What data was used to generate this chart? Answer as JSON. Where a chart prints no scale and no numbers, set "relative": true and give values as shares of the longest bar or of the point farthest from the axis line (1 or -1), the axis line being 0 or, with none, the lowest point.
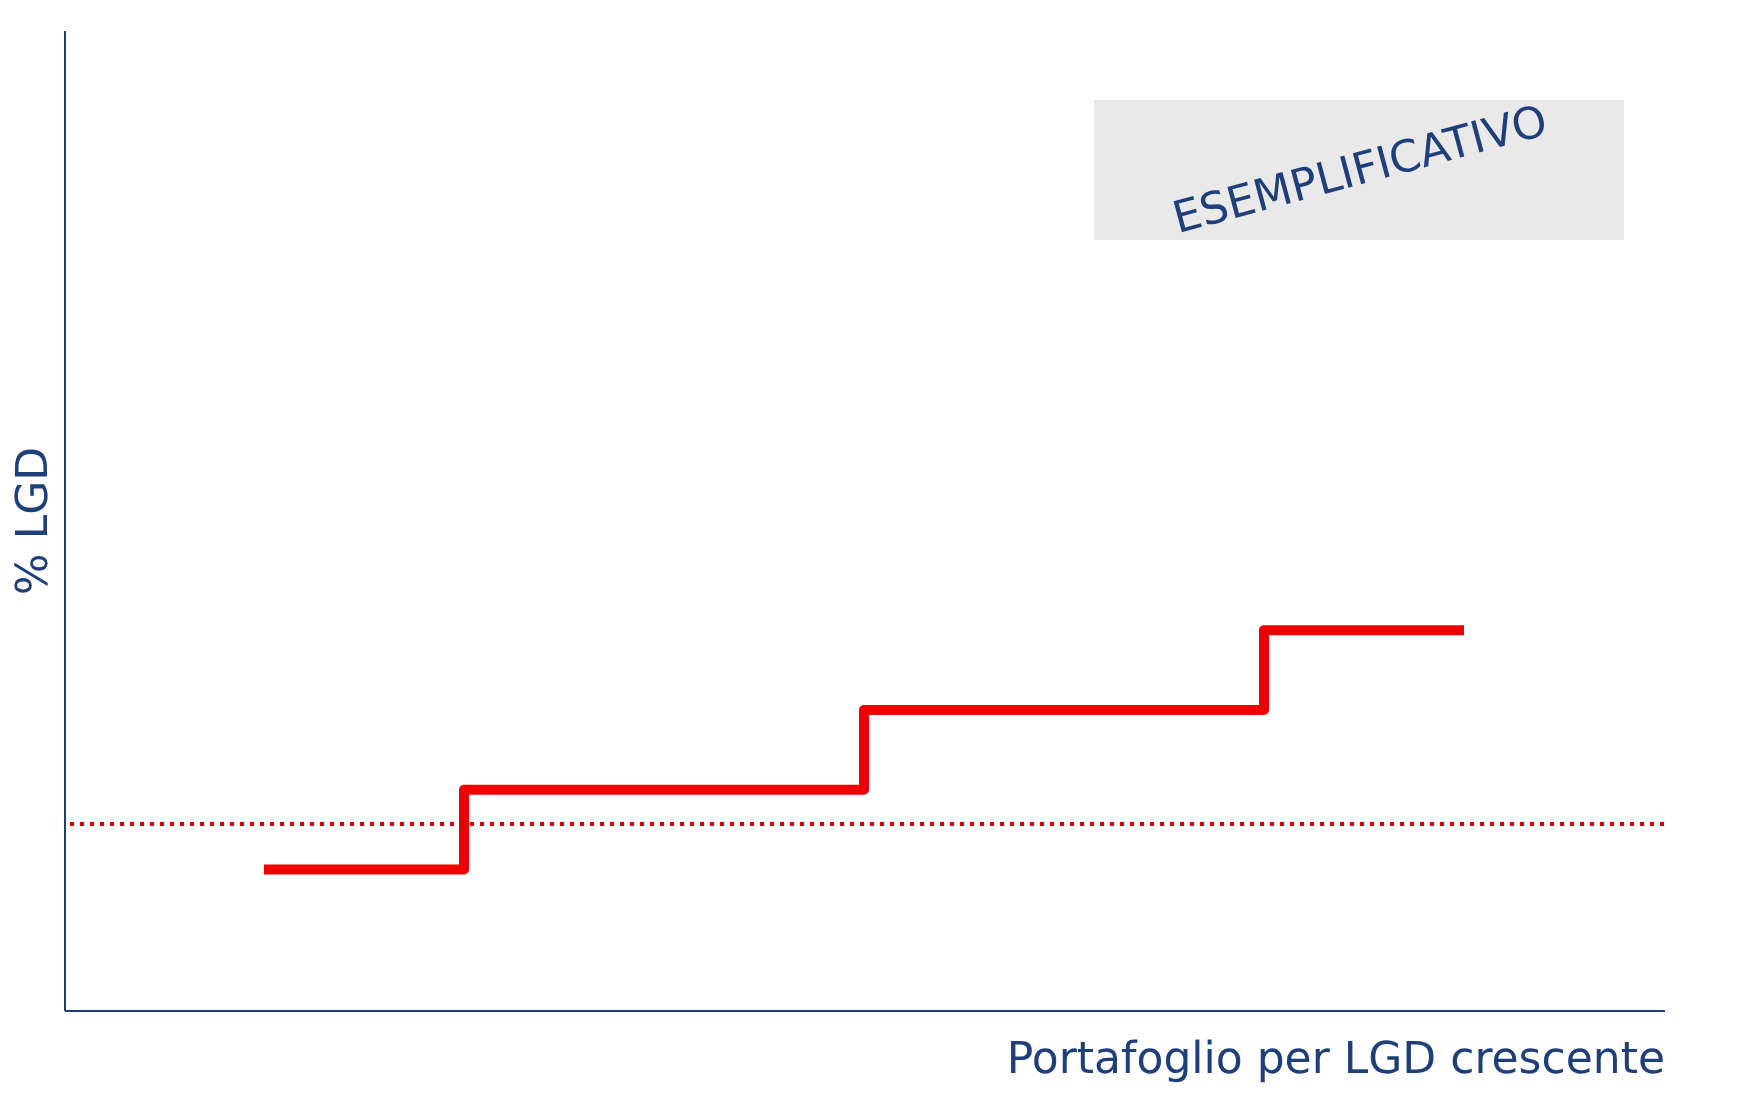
{
  "chart_data": {
    "type": "step",
    "xlabel": "Portafoglio per LGD crescente",
    "ylabel": "% LGD",
    "categories": [
      null,
      null,
      null,
      null
    ],
    "values": [
      0.37,
      0.58,
      0.79,
      1
    ],
    "color": "#ee0000",
    "relative": true,
    "tick_labels": false,
    "ref_lines": [
      {
        "axis": "y",
        "value": 0.49,
        "color": "#dd0000",
        "line_style": "dotted"
      }
    ],
    "annotations": [
      "ESEMPLIFICATIVO"
    ]
  }
}
